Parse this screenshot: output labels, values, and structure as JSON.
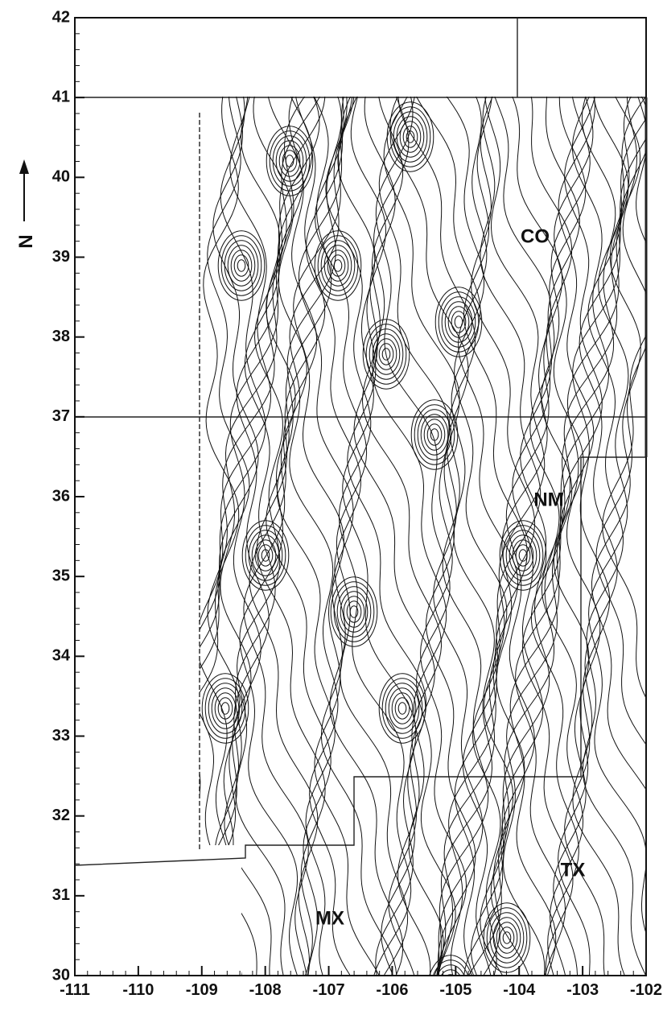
{
  "map": {
    "xlim": [
      -111,
      -102
    ],
    "ylim": [
      30,
      42
    ],
    "xticks": [
      -111,
      -110,
      -109,
      -108,
      -107,
      -106,
      -105,
      -104,
      -103,
      -102
    ],
    "yticks": [
      30,
      31,
      32,
      33,
      34,
      35,
      36,
      37,
      38,
      39,
      40,
      41,
      42
    ],
    "regions": [
      "CO",
      "NM",
      "TX",
      "MX"
    ],
    "north": "N"
  }
}
